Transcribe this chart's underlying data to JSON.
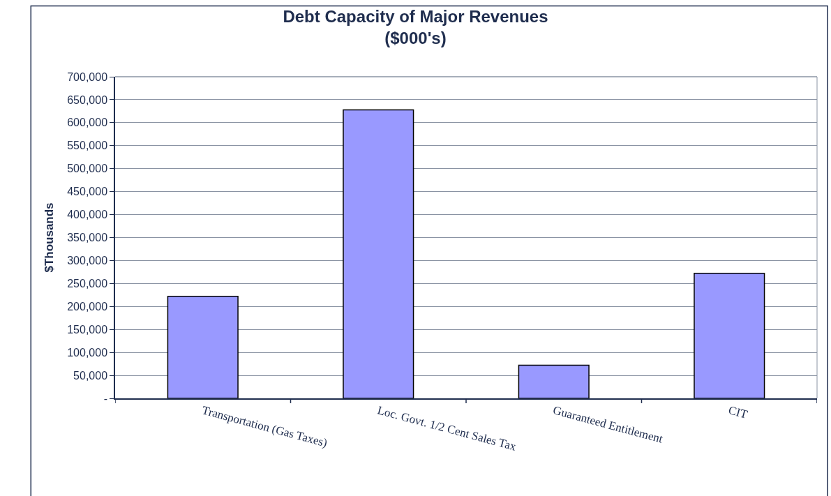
{
  "chart_data": {
    "type": "bar",
    "title": "Debt Capacity of Major Revenues\n($000's)",
    "ylabel": "$Thousands",
    "categories": [
      "Transportation (Gas Taxes)",
      "Loc. Govt. 1/2 Cent Sales Tax",
      "Guaranteed Entitlement",
      "CIT"
    ],
    "values": [
      222000,
      628000,
      72000,
      272000
    ],
    "color": "#9999ff",
    "ylim": [
      0,
      700000
    ],
    "yticks": [
      {
        "value": 0,
        "label": "-"
      },
      {
        "value": 50000,
        "label": "50,000"
      },
      {
        "value": 100000,
        "label": "100,000"
      },
      {
        "value": 150000,
        "label": "150,000"
      },
      {
        "value": 200000,
        "label": "200,000"
      },
      {
        "value": 250000,
        "label": "250,000"
      },
      {
        "value": 300000,
        "label": "300,000"
      },
      {
        "value": 350000,
        "label": "350,000"
      },
      {
        "value": 400000,
        "label": "400,000"
      },
      {
        "value": 450000,
        "label": "450,000"
      },
      {
        "value": 500000,
        "label": "500,000"
      },
      {
        "value": 550000,
        "label": "550,000"
      },
      {
        "value": 600000,
        "label": "600,000"
      },
      {
        "value": 650000,
        "label": "650,000"
      },
      {
        "value": 700000,
        "label": "700,000"
      }
    ],
    "grid": "y",
    "legend": false
  }
}
